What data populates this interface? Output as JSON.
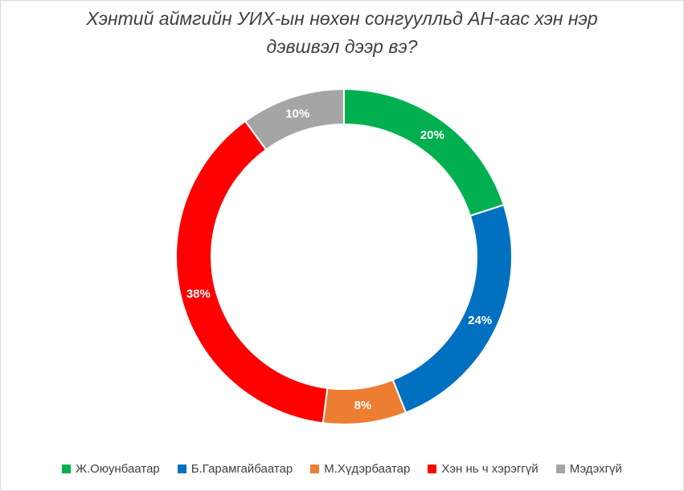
{
  "chart_data": {
    "type": "pie",
    "title_lines": [
      "Хэнтий аймгийн УИХ-ын нөхөн сонгуулльд АН-аас хэн нэр",
      "дэвшвэл дээр вэ?"
    ],
    "categories": [
      "Ж.Оюунбаатар",
      "Б.Гарамгайбаатар",
      "М.Хүдэрбаатар",
      "Хэн нь ч хэрэггүй",
      "Мэдэхгүй"
    ],
    "values": [
      20,
      24,
      8,
      38,
      10
    ],
    "labels": [
      "20%",
      "24%",
      "8%",
      "38%",
      "10%"
    ],
    "colors": [
      "#00b050",
      "#0070c0",
      "#ed7d31",
      "#ff0000",
      "#a5a5a5"
    ],
    "hole": "donut",
    "legend_position": "bottom"
  }
}
